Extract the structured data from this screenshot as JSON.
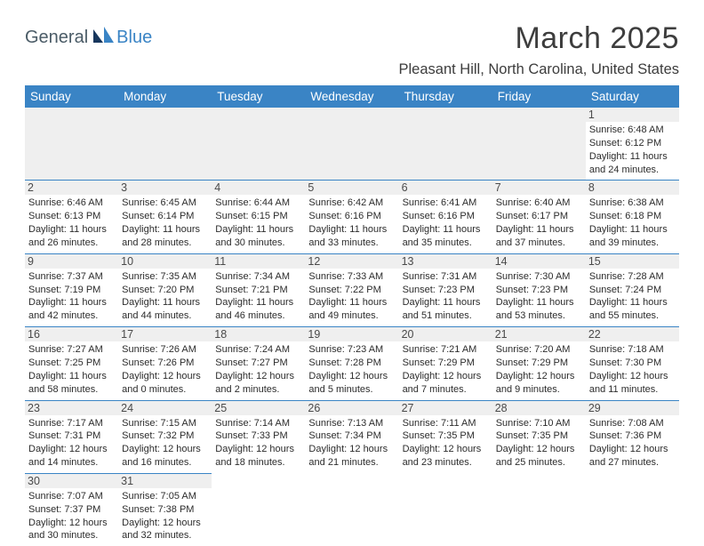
{
  "logo": {
    "part1": "General",
    "part2": "Blue"
  },
  "title": "March 2025",
  "location": "Pleasant Hill, North Carolina, United States",
  "colors": {
    "header_bg": "#3a84c5",
    "header_fg": "#ffffff",
    "daynum_bg": "#efefef",
    "border": "#3a84c5"
  },
  "weekdays": [
    "Sunday",
    "Monday",
    "Tuesday",
    "Wednesday",
    "Thursday",
    "Friday",
    "Saturday"
  ],
  "cells": [
    [
      null,
      null,
      null,
      null,
      null,
      null,
      {
        "n": "1",
        "sr": "Sunrise: 6:48 AM",
        "ss": "Sunset: 6:12 PM",
        "d1": "Daylight: 11 hours",
        "d2": "and 24 minutes."
      }
    ],
    [
      {
        "n": "2",
        "sr": "Sunrise: 6:46 AM",
        "ss": "Sunset: 6:13 PM",
        "d1": "Daylight: 11 hours",
        "d2": "and 26 minutes."
      },
      {
        "n": "3",
        "sr": "Sunrise: 6:45 AM",
        "ss": "Sunset: 6:14 PM",
        "d1": "Daylight: 11 hours",
        "d2": "and 28 minutes."
      },
      {
        "n": "4",
        "sr": "Sunrise: 6:44 AM",
        "ss": "Sunset: 6:15 PM",
        "d1": "Daylight: 11 hours",
        "d2": "and 30 minutes."
      },
      {
        "n": "5",
        "sr": "Sunrise: 6:42 AM",
        "ss": "Sunset: 6:16 PM",
        "d1": "Daylight: 11 hours",
        "d2": "and 33 minutes."
      },
      {
        "n": "6",
        "sr": "Sunrise: 6:41 AM",
        "ss": "Sunset: 6:16 PM",
        "d1": "Daylight: 11 hours",
        "d2": "and 35 minutes."
      },
      {
        "n": "7",
        "sr": "Sunrise: 6:40 AM",
        "ss": "Sunset: 6:17 PM",
        "d1": "Daylight: 11 hours",
        "d2": "and 37 minutes."
      },
      {
        "n": "8",
        "sr": "Sunrise: 6:38 AM",
        "ss": "Sunset: 6:18 PM",
        "d1": "Daylight: 11 hours",
        "d2": "and 39 minutes."
      }
    ],
    [
      {
        "n": "9",
        "sr": "Sunrise: 7:37 AM",
        "ss": "Sunset: 7:19 PM",
        "d1": "Daylight: 11 hours",
        "d2": "and 42 minutes."
      },
      {
        "n": "10",
        "sr": "Sunrise: 7:35 AM",
        "ss": "Sunset: 7:20 PM",
        "d1": "Daylight: 11 hours",
        "d2": "and 44 minutes."
      },
      {
        "n": "11",
        "sr": "Sunrise: 7:34 AM",
        "ss": "Sunset: 7:21 PM",
        "d1": "Daylight: 11 hours",
        "d2": "and 46 minutes."
      },
      {
        "n": "12",
        "sr": "Sunrise: 7:33 AM",
        "ss": "Sunset: 7:22 PM",
        "d1": "Daylight: 11 hours",
        "d2": "and 49 minutes."
      },
      {
        "n": "13",
        "sr": "Sunrise: 7:31 AM",
        "ss": "Sunset: 7:23 PM",
        "d1": "Daylight: 11 hours",
        "d2": "and 51 minutes."
      },
      {
        "n": "14",
        "sr": "Sunrise: 7:30 AM",
        "ss": "Sunset: 7:23 PM",
        "d1": "Daylight: 11 hours",
        "d2": "and 53 minutes."
      },
      {
        "n": "15",
        "sr": "Sunrise: 7:28 AM",
        "ss": "Sunset: 7:24 PM",
        "d1": "Daylight: 11 hours",
        "d2": "and 55 minutes."
      }
    ],
    [
      {
        "n": "16",
        "sr": "Sunrise: 7:27 AM",
        "ss": "Sunset: 7:25 PM",
        "d1": "Daylight: 11 hours",
        "d2": "and 58 minutes."
      },
      {
        "n": "17",
        "sr": "Sunrise: 7:26 AM",
        "ss": "Sunset: 7:26 PM",
        "d1": "Daylight: 12 hours",
        "d2": "and 0 minutes."
      },
      {
        "n": "18",
        "sr": "Sunrise: 7:24 AM",
        "ss": "Sunset: 7:27 PM",
        "d1": "Daylight: 12 hours",
        "d2": "and 2 minutes."
      },
      {
        "n": "19",
        "sr": "Sunrise: 7:23 AM",
        "ss": "Sunset: 7:28 PM",
        "d1": "Daylight: 12 hours",
        "d2": "and 5 minutes."
      },
      {
        "n": "20",
        "sr": "Sunrise: 7:21 AM",
        "ss": "Sunset: 7:29 PM",
        "d1": "Daylight: 12 hours",
        "d2": "and 7 minutes."
      },
      {
        "n": "21",
        "sr": "Sunrise: 7:20 AM",
        "ss": "Sunset: 7:29 PM",
        "d1": "Daylight: 12 hours",
        "d2": "and 9 minutes."
      },
      {
        "n": "22",
        "sr": "Sunrise: 7:18 AM",
        "ss": "Sunset: 7:30 PM",
        "d1": "Daylight: 12 hours",
        "d2": "and 11 minutes."
      }
    ],
    [
      {
        "n": "23",
        "sr": "Sunrise: 7:17 AM",
        "ss": "Sunset: 7:31 PM",
        "d1": "Daylight: 12 hours",
        "d2": "and 14 minutes."
      },
      {
        "n": "24",
        "sr": "Sunrise: 7:15 AM",
        "ss": "Sunset: 7:32 PM",
        "d1": "Daylight: 12 hours",
        "d2": "and 16 minutes."
      },
      {
        "n": "25",
        "sr": "Sunrise: 7:14 AM",
        "ss": "Sunset: 7:33 PM",
        "d1": "Daylight: 12 hours",
        "d2": "and 18 minutes."
      },
      {
        "n": "26",
        "sr": "Sunrise: 7:13 AM",
        "ss": "Sunset: 7:34 PM",
        "d1": "Daylight: 12 hours",
        "d2": "and 21 minutes."
      },
      {
        "n": "27",
        "sr": "Sunrise: 7:11 AM",
        "ss": "Sunset: 7:35 PM",
        "d1": "Daylight: 12 hours",
        "d2": "and 23 minutes."
      },
      {
        "n": "28",
        "sr": "Sunrise: 7:10 AM",
        "ss": "Sunset: 7:35 PM",
        "d1": "Daylight: 12 hours",
        "d2": "and 25 minutes."
      },
      {
        "n": "29",
        "sr": "Sunrise: 7:08 AM",
        "ss": "Sunset: 7:36 PM",
        "d1": "Daylight: 12 hours",
        "d2": "and 27 minutes."
      }
    ],
    [
      {
        "n": "30",
        "sr": "Sunrise: 7:07 AM",
        "ss": "Sunset: 7:37 PM",
        "d1": "Daylight: 12 hours",
        "d2": "and 30 minutes."
      },
      {
        "n": "31",
        "sr": "Sunrise: 7:05 AM",
        "ss": "Sunset: 7:38 PM",
        "d1": "Daylight: 12 hours",
        "d2": "and 32 minutes."
      },
      null,
      null,
      null,
      null,
      null
    ]
  ]
}
